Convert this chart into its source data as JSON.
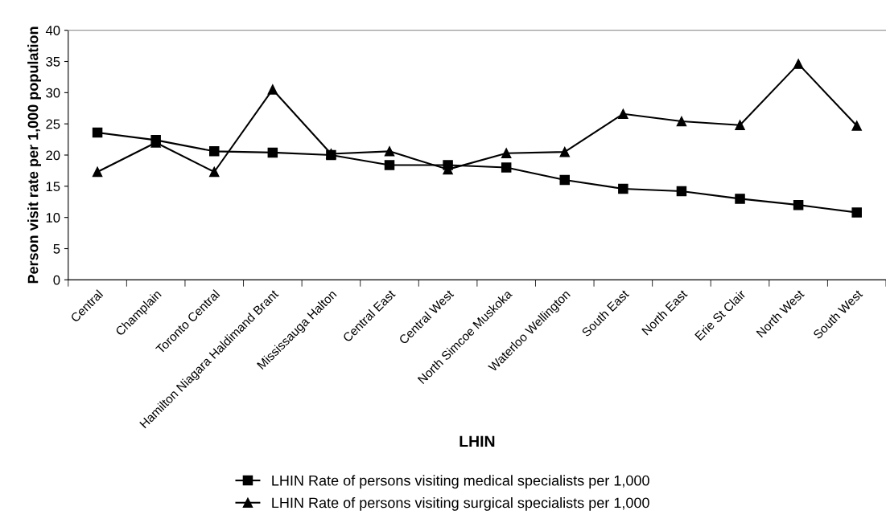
{
  "chart_data": {
    "type": "line",
    "xlabel": "LHIN",
    "ylabel": "Person visit rate per 1,000 population",
    "categories": [
      "Central",
      "Champlain",
      "Toronto Central",
      "Hamilton Niagara Haldimand Brant",
      "Mississauga Halton",
      "Central East",
      "Central West",
      "North Simcoe Muskoka",
      "Waterloo Wellington",
      "South East",
      "North East",
      "Erie St Clair",
      "North West",
      "South West"
    ],
    "series": [
      {
        "name": "LHIN Rate of persons visiting medical specialists per 1,000",
        "color": "#000000",
        "marker": "square",
        "values": [
          23.6,
          22.4,
          20.6,
          20.4,
          20.0,
          18.4,
          18.4,
          18.0,
          16.0,
          14.6,
          14.2,
          13.0,
          12.0,
          10.8
        ]
      },
      {
        "name": "LHIN Rate of persons visiting surgical specialists per 1,000",
        "color": "#000000",
        "marker": "triangle",
        "values": [
          17.3,
          22.0,
          17.3,
          30.5,
          20.2,
          20.6,
          17.7,
          20.3,
          20.5,
          26.6,
          25.4,
          24.8,
          34.6,
          24.7
        ]
      }
    ],
    "ylim": [
      0,
      40
    ],
    "yticks": [
      0,
      5,
      10,
      15,
      20,
      25,
      30,
      35,
      40
    ],
    "grid": false,
    "legend": "bottom",
    "line_style": "solid"
  }
}
